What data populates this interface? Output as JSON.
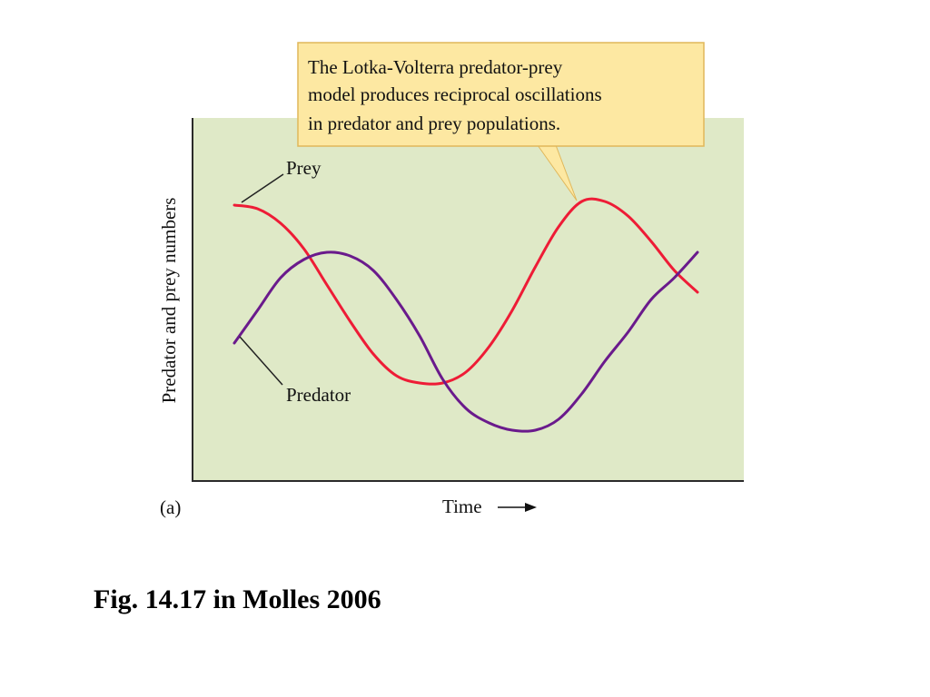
{
  "colors": {
    "plot_background": "#dfe9c7",
    "prey_line": "#ee1c36",
    "predator_line": "#6a1a8c",
    "callout_fill": "#fde8a2",
    "callout_border": "#e0b75a"
  },
  "caption": "Fig. 14.17 in Molles 2006",
  "chart_data": {
    "type": "line",
    "panel_label": "(a)",
    "title": "",
    "xlabel": "Time",
    "ylabel": "Predator and prey numbers",
    "x": [
      0,
      1,
      2,
      3,
      4,
      5,
      6,
      7,
      8,
      9,
      10,
      11,
      12,
      13,
      14,
      15,
      16,
      17,
      18,
      19,
      20
    ],
    "xlim": [
      0,
      20
    ],
    "ylim": [
      0,
      100
    ],
    "grid": false,
    "series": [
      {
        "name": "Prey",
        "color": "#ee1c36",
        "values": [
          76,
          75,
          71,
          64,
          54,
          44,
          35,
          29,
          27,
          27,
          30,
          37,
          47,
          59,
          70,
          77,
          77,
          73,
          66,
          58,
          52
        ]
      },
      {
        "name": "Predator",
        "color": "#6a1a8c",
        "values": [
          38,
          47,
          56,
          61,
          63,
          62,
          58,
          50,
          40,
          28,
          20,
          16,
          14,
          14,
          17,
          24,
          33,
          41,
          50,
          56,
          63
        ]
      }
    ],
    "annotation": {
      "lines": [
        "The Lotka-Volterra predator-prey",
        "model produces reciprocal oscillations",
        "in predator and prey populations."
      ]
    }
  }
}
